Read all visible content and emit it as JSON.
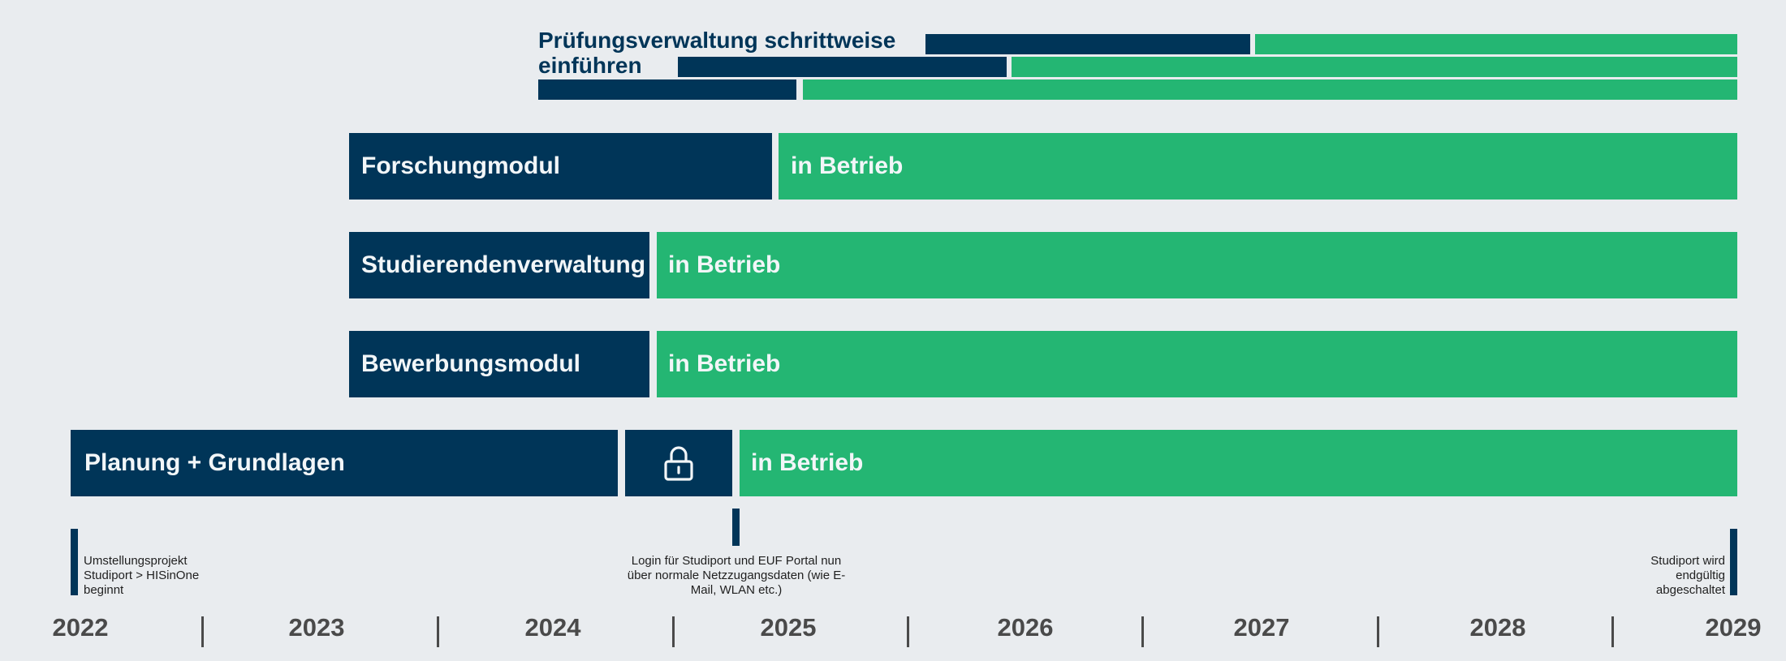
{
  "pruefung": {
    "title": "Prüfungsverwaltung schrittweise einführen"
  },
  "rows": {
    "forschung": {
      "module": "Forschungmodul",
      "status": "in Betrieb"
    },
    "studierende": {
      "module": "Studierendenverwaltung",
      "status": "in Betrieb"
    },
    "bewerbung": {
      "module": "Bewerbungsmodul",
      "status": "in Betrieb"
    },
    "planung": {
      "module": "Planung + Grundlagen",
      "lock_icon": "lock-icon",
      "status": "in Betrieb"
    }
  },
  "milestones": {
    "start": "Umstellungsprojekt Studiport > HISinOne beginnt",
    "login": "Login für Studiport und EUF Portal nun über normale Netzzugangsdaten (wie E-Mail, WLAN etc.)",
    "end": "Studiport wird endgültig abgeschaltet"
  },
  "timeline": {
    "years": [
      "2022",
      "2023",
      "2024",
      "2025",
      "2026",
      "2027",
      "2028",
      "2029"
    ]
  },
  "colors": {
    "planning": "#003558",
    "operation": "#24b673",
    "background": "#e9ecef"
  }
}
